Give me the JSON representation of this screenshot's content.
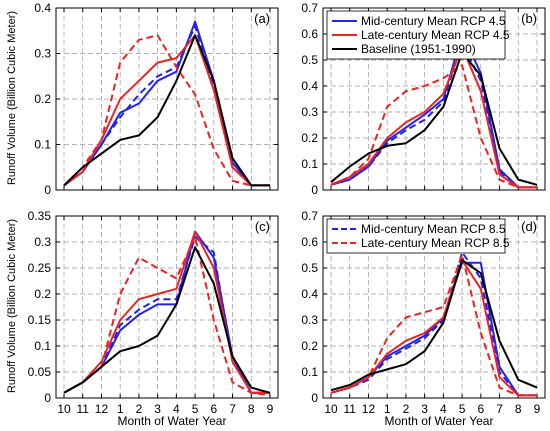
{
  "figure": {
    "ylabel": "Runoff Volume (Billion Cubic Meter)",
    "xlabel": "Month of Water Year"
  },
  "colors": {
    "blue": "#2222ee",
    "red": "#ee2222",
    "black": "#000000",
    "grid": "#999999"
  },
  "chart_data": [
    {
      "type": "line",
      "panel_label": "(a)",
      "categories": [
        "10",
        "11",
        "12",
        "1",
        "2",
        "3",
        "4",
        "5",
        "6",
        "7",
        "8",
        "9"
      ],
      "ylim": [
        0,
        0.4
      ],
      "yticks": [
        "0",
        "0.1",
        "0.2",
        "0.3",
        "0.4"
      ],
      "grid": true,
      "legend": null,
      "series": [
        {
          "color": "blue",
          "dash": "solid",
          "values": [
            0.01,
            0.04,
            0.1,
            0.17,
            0.19,
            0.24,
            0.26,
            0.37,
            0.24,
            0.06,
            0.01,
            0.01
          ]
        },
        {
          "color": "blue",
          "dash": "dashed",
          "values": [
            0.01,
            0.04,
            0.1,
            0.16,
            0.21,
            0.25,
            0.27,
            0.36,
            0.23,
            0.05,
            0.01,
            0.01
          ]
        },
        {
          "color": "red",
          "dash": "solid",
          "values": [
            0.01,
            0.04,
            0.11,
            0.2,
            0.24,
            0.28,
            0.29,
            0.34,
            0.22,
            0.05,
            0.01,
            0.01
          ]
        },
        {
          "color": "red",
          "dash": "dashed",
          "values": [
            0.01,
            0.05,
            0.11,
            0.28,
            0.33,
            0.34,
            0.27,
            0.21,
            0.09,
            0.02,
            0.01,
            0.01
          ]
        },
        {
          "color": "black",
          "dash": "solid",
          "values": [
            0.01,
            0.05,
            0.08,
            0.11,
            0.12,
            0.16,
            0.24,
            0.34,
            0.24,
            0.07,
            0.01,
            0.01
          ]
        }
      ]
    },
    {
      "type": "line",
      "panel_label": "(b)",
      "categories": [
        "10",
        "11",
        "12",
        "1",
        "2",
        "3",
        "4",
        "5",
        "6",
        "7",
        "8",
        "9"
      ],
      "ylim": [
        0,
        0.7
      ],
      "yticks": [
        "0",
        "0.1",
        "0.2",
        "0.3",
        "0.4",
        "0.5",
        "0.6",
        "0.7"
      ],
      "grid": true,
      "legend": {
        "placement": "top-right",
        "entries": [
          {
            "label": "Mid-century Mean RCP 4.5",
            "color": "blue",
            "dash": "solid"
          },
          {
            "label": "Late-century Mean RCP 4.5",
            "color": "red",
            "dash": "solid"
          },
          {
            "label": "Baseline (1951-1990)",
            "color": "black",
            "dash": "solid"
          }
        ]
      },
      "series": [
        {
          "color": "blue",
          "dash": "solid",
          "values": [
            0.02,
            0.04,
            0.09,
            0.19,
            0.24,
            0.29,
            0.35,
            0.6,
            0.45,
            0.08,
            0.01,
            0.01
          ]
        },
        {
          "color": "blue",
          "dash": "dashed",
          "values": [
            0.02,
            0.04,
            0.09,
            0.18,
            0.23,
            0.27,
            0.34,
            0.57,
            0.42,
            0.07,
            0.01,
            0.01
          ]
        },
        {
          "color": "red",
          "dash": "solid",
          "values": [
            0.02,
            0.05,
            0.1,
            0.2,
            0.26,
            0.3,
            0.37,
            0.55,
            0.38,
            0.06,
            0.01,
            0.01
          ]
        },
        {
          "color": "red",
          "dash": "dashed",
          "values": [
            0.02,
            0.05,
            0.12,
            0.32,
            0.38,
            0.4,
            0.43,
            0.48,
            0.2,
            0.04,
            0.01,
            0.01
          ]
        },
        {
          "color": "black",
          "dash": "solid",
          "values": [
            0.03,
            0.09,
            0.14,
            0.17,
            0.18,
            0.23,
            0.32,
            0.53,
            0.44,
            0.16,
            0.04,
            0.02
          ]
        }
      ]
    },
    {
      "type": "line",
      "panel_label": "(c)",
      "categories": [
        "10",
        "11",
        "12",
        "1",
        "2",
        "3",
        "4",
        "5",
        "6",
        "7",
        "8",
        "9"
      ],
      "ylim": [
        0,
        0.35
      ],
      "yticks": [
        "0",
        "0.05",
        "0.1",
        "0.15",
        "0.2",
        "0.25",
        "0.3",
        "0.35"
      ],
      "grid": true,
      "legend": null,
      "series": [
        {
          "color": "blue",
          "dash": "solid",
          "values": [
            0.01,
            0.03,
            0.06,
            0.13,
            0.16,
            0.18,
            0.18,
            0.32,
            0.27,
            0.08,
            0.01,
            0.01
          ]
        },
        {
          "color": "blue",
          "dash": "dashed",
          "values": [
            0.01,
            0.03,
            0.06,
            0.14,
            0.17,
            0.19,
            0.19,
            0.31,
            0.28,
            0.07,
            0.01,
            0.01
          ]
        },
        {
          "color": "red",
          "dash": "solid",
          "values": [
            0.01,
            0.03,
            0.07,
            0.15,
            0.19,
            0.2,
            0.21,
            0.32,
            0.25,
            0.07,
            0.01,
            0.01
          ]
        },
        {
          "color": "red",
          "dash": "dashed",
          "values": [
            0.01,
            0.03,
            0.06,
            0.2,
            0.27,
            0.25,
            0.23,
            0.31,
            0.15,
            0.03,
            0.01,
            0.005
          ]
        },
        {
          "color": "black",
          "dash": "solid",
          "values": [
            0.01,
            0.03,
            0.06,
            0.09,
            0.1,
            0.12,
            0.18,
            0.29,
            0.22,
            0.08,
            0.02,
            0.01
          ]
        }
      ]
    },
    {
      "type": "line",
      "panel_label": "(d)",
      "categories": [
        "10",
        "11",
        "12",
        "1",
        "2",
        "3",
        "4",
        "5",
        "6",
        "7",
        "8",
        "9"
      ],
      "ylim": [
        0,
        0.7
      ],
      "yticks": [
        "0",
        "0.1",
        "0.2",
        "0.3",
        "0.4",
        "0.5",
        "0.6",
        "0.7"
      ],
      "grid": true,
      "legend": {
        "placement": "top-right",
        "entries": [
          {
            "label": "Mid-century Mean RCP 8.5",
            "color": "blue",
            "dash": "dashed"
          },
          {
            "label": "Late-century Mean RCP 8.5",
            "color": "red",
            "dash": "dashed"
          }
        ]
      },
      "series": [
        {
          "color": "blue",
          "dash": "solid",
          "values": [
            0.02,
            0.04,
            0.08,
            0.16,
            0.2,
            0.24,
            0.31,
            0.52,
            0.52,
            0.12,
            0.01,
            0.01
          ]
        },
        {
          "color": "blue",
          "dash": "dashed",
          "values": [
            0.02,
            0.04,
            0.07,
            0.15,
            0.19,
            0.23,
            0.3,
            0.56,
            0.46,
            0.1,
            0.01,
            0.01
          ]
        },
        {
          "color": "red",
          "dash": "solid",
          "values": [
            0.02,
            0.04,
            0.08,
            0.17,
            0.22,
            0.25,
            0.31,
            0.53,
            0.42,
            0.08,
            0.01,
            0.01
          ]
        },
        {
          "color": "red",
          "dash": "dashed",
          "values": [
            0.02,
            0.04,
            0.08,
            0.23,
            0.31,
            0.33,
            0.35,
            0.55,
            0.25,
            0.04,
            0.01,
            0.01
          ]
        },
        {
          "color": "black",
          "dash": "solid",
          "values": [
            0.03,
            0.05,
            0.09,
            0.11,
            0.13,
            0.18,
            0.29,
            0.53,
            0.48,
            0.22,
            0.07,
            0.04
          ]
        }
      ]
    }
  ]
}
